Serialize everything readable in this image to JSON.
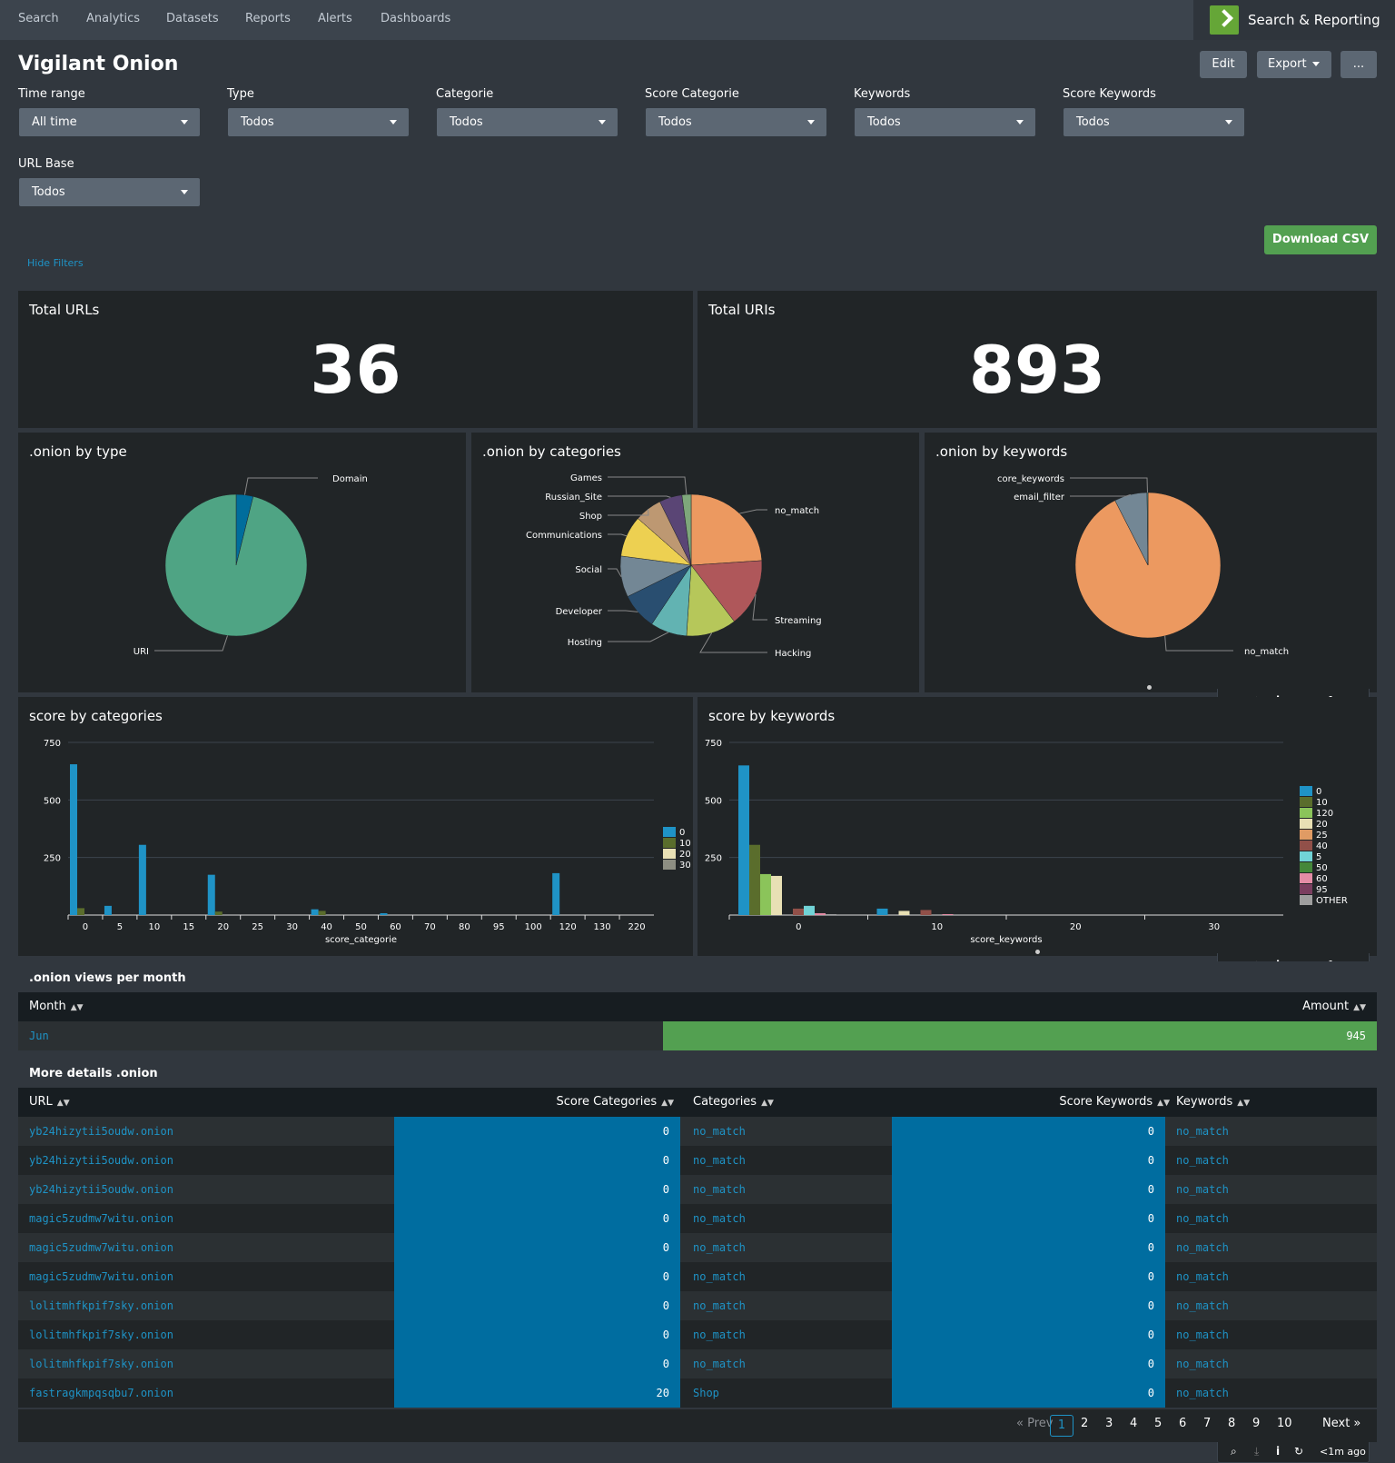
{
  "nav": {
    "items": [
      "Search",
      "Analytics",
      "Datasets",
      "Reports",
      "Alerts",
      "Dashboards"
    ],
    "app_name": "Search & Reporting"
  },
  "dashboard": {
    "title": "Vigilant Onion",
    "edit_label": "Edit",
    "export_label": "Export",
    "more_label": "..."
  },
  "filters": [
    {
      "label": "Time range",
      "value": "All time"
    },
    {
      "label": "Type",
      "value": "Todos"
    },
    {
      "label": "Categorie",
      "value": "Todos"
    },
    {
      "label": "Score Categorie",
      "value": "Todos"
    },
    {
      "label": "Keywords",
      "value": "Todos"
    },
    {
      "label": "Score Keywords",
      "value": "Todos"
    },
    {
      "label": "URL Base",
      "value": "Todos"
    }
  ],
  "download_csv": "Download CSV",
  "hide_filters": "Hide Filters",
  "singles": [
    {
      "title": "Total URLs",
      "value": "36"
    },
    {
      "title": "Total URIs",
      "value": "893"
    }
  ],
  "toolbar": {
    "ago": "<1m ago"
  },
  "colors": {
    "accent": "#1e93c6",
    "green": "#53a051",
    "heat": "#006da0"
  },
  "chart_data": [
    {
      "type": "pie",
      "title": ".onion by type",
      "labels": [
        "Domain",
        "URI"
      ],
      "values": [
        36,
        893
      ],
      "colors": [
        "#006d9c",
        "#4fa484"
      ]
    },
    {
      "type": "pie",
      "title": ".onion by categories",
      "labels": [
        "no_match",
        "Streaming",
        "Hacking",
        "Hosting",
        "Developer",
        "Social",
        "Communications",
        "Shop",
        "Russian_Site",
        "Games"
      ],
      "values": [
        23,
        15,
        11,
        8,
        8,
        9,
        9,
        6,
        5,
        2
      ],
      "colors": [
        "#ec9960",
        "#af575a",
        "#b6c75a",
        "#62b3b2",
        "#294e70",
        "#738795",
        "#edd051",
        "#bd9872",
        "#5a4575",
        "#7ea77b"
      ]
    },
    {
      "type": "pie",
      "title": ".onion by keywords",
      "labels": [
        "no_match",
        "email_filter",
        "core_keywords"
      ],
      "values": [
        92.5,
        7.3,
        0.2
      ],
      "colors": [
        "#ec9960",
        "#738795",
        "#62b3b2"
      ]
    },
    {
      "type": "bar",
      "title": "score by categories",
      "xlabel": "score_categorie",
      "ylim": [
        0,
        750
      ],
      "yticks": [
        250,
        500,
        750
      ],
      "categories": [
        "0",
        "5",
        "10",
        "15",
        "20",
        "25",
        "30",
        "40",
        "50",
        "60",
        "70",
        "80",
        "95",
        "100",
        "120",
        "130",
        "220"
      ],
      "series": [
        {
          "name": "0",
          "color": "#1f93c6",
          "values": [
            655,
            40,
            305,
            0,
            175,
            0,
            0,
            25,
            0,
            8,
            0,
            0,
            0,
            0,
            182,
            0,
            0
          ]
        },
        {
          "name": "10",
          "color": "#5a6d2c",
          "values": [
            30,
            0,
            0,
            0,
            15,
            0,
            0,
            18,
            0,
            0,
            0,
            0,
            0,
            0,
            0,
            0,
            0
          ]
        },
        {
          "name": "20",
          "color": "#e8e0b4",
          "values": [
            0,
            0,
            0,
            0,
            0,
            0,
            0,
            0,
            0,
            0,
            0,
            0,
            0,
            0,
            0,
            0,
            0
          ]
        },
        {
          "name": "30",
          "color": "#8d8e82",
          "values": [
            0,
            0,
            0,
            0,
            0,
            0,
            0,
            0,
            0,
            0,
            0,
            0,
            0,
            0,
            0,
            0,
            0
          ]
        }
      ]
    },
    {
      "type": "bar",
      "title": "score by keywords",
      "xlabel": "score_keywords",
      "ylim": [
        0,
        750
      ],
      "yticks": [
        250,
        500,
        750
      ],
      "xticks": [
        "0",
        "10",
        "20",
        "30"
      ],
      "legend": [
        "0",
        "10",
        "120",
        "20",
        "25",
        "40",
        "5",
        "50",
        "60",
        "95",
        "OTHER"
      ],
      "legend_colors": [
        "#1f93c6",
        "#5a6d2c",
        "#8bc45a",
        "#e8e0b4",
        "#e09b64",
        "#915049",
        "#71d3d6",
        "#45873a",
        "#e48ca6",
        "#7a3e5f",
        "#9e9e9e"
      ],
      "bars": [
        {
          "series": "0",
          "value": 650
        },
        {
          "series": "10",
          "value": 305
        },
        {
          "series": "120",
          "value": 178
        },
        {
          "series": "20",
          "value": 170
        },
        {
          "series": "40",
          "value": 28
        },
        {
          "series": "5",
          "value": 40
        },
        {
          "series": "60",
          "value": 8
        },
        {
          "series": "OTHER",
          "value": 4
        },
        {
          "series": "0",
          "value": 28
        },
        {
          "series": "20",
          "value": 18
        },
        {
          "series": "40",
          "value": 22
        },
        {
          "series": "60",
          "value": 4
        }
      ]
    }
  ],
  "views": {
    "title": ".onion views per month",
    "col_month": "Month",
    "col_amount": "Amount",
    "rows": [
      {
        "month": "Jun",
        "amount": "945",
        "fraction": 1.0
      }
    ]
  },
  "details": {
    "title": "More details .onion",
    "columns": [
      "URL",
      "Score Categories",
      "Categories",
      "Score Keywords",
      "Keywords"
    ],
    "rows": [
      {
        "url": "yb24hizytii5oudw.onion",
        "score_cat": "0",
        "cat": "no_match",
        "score_kw": "0",
        "kw": "no_match"
      },
      {
        "url": "yb24hizytii5oudw.onion",
        "score_cat": "0",
        "cat": "no_match",
        "score_kw": "0",
        "kw": "no_match"
      },
      {
        "url": "yb24hizytii5oudw.onion",
        "score_cat": "0",
        "cat": "no_match",
        "score_kw": "0",
        "kw": "no_match"
      },
      {
        "url": "magic5zudmw7witu.onion",
        "score_cat": "0",
        "cat": "no_match",
        "score_kw": "0",
        "kw": "no_match"
      },
      {
        "url": "magic5zudmw7witu.onion",
        "score_cat": "0",
        "cat": "no_match",
        "score_kw": "0",
        "kw": "no_match"
      },
      {
        "url": "magic5zudmw7witu.onion",
        "score_cat": "0",
        "cat": "no_match",
        "score_kw": "0",
        "kw": "no_match"
      },
      {
        "url": "lolitmhfkpif7sky.onion",
        "score_cat": "0",
        "cat": "no_match",
        "score_kw": "0",
        "kw": "no_match"
      },
      {
        "url": "lolitmhfkpif7sky.onion",
        "score_cat": "0",
        "cat": "no_match",
        "score_kw": "0",
        "kw": "no_match"
      },
      {
        "url": "lolitmhfkpif7sky.onion",
        "score_cat": "0",
        "cat": "no_match",
        "score_kw": "0",
        "kw": "no_match"
      },
      {
        "url": "fastragkmpqsqbu7.onion",
        "score_cat": "20",
        "cat": "Shop",
        "score_kw": "0",
        "kw": "no_match"
      }
    ]
  },
  "pagination": {
    "prev": "« Prev",
    "pages": [
      "1",
      "2",
      "3",
      "4",
      "5",
      "6",
      "7",
      "8",
      "9",
      "10"
    ],
    "next": "Next »",
    "current": "1"
  }
}
